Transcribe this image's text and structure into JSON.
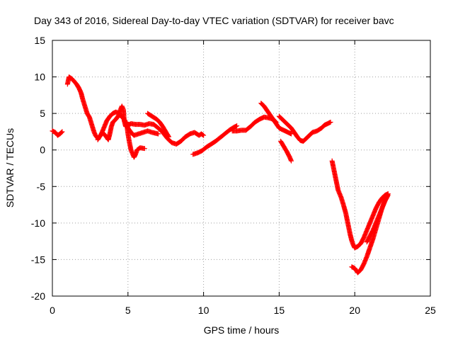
{
  "chart_data": {
    "type": "scatter",
    "title": "Day 343 of 2016, Sidereal Day-to-day VTEC variation (SDTVAR) for receiver bavc",
    "xlabel": "GPS time / hours",
    "ylabel": "SDTVAR / TECUs",
    "xlim": [
      0,
      25
    ],
    "ylim": [
      -20,
      15
    ],
    "xticks": [
      0,
      5,
      10,
      15,
      20,
      25
    ],
    "yticks": [
      -20,
      -15,
      -10,
      -5,
      0,
      5,
      10,
      15
    ],
    "grid": true,
    "marker": "+",
    "color": "#ff0000",
    "series": [
      {
        "segments": [
          [
            [
              0.0,
              2.6
            ],
            [
              0.2,
              2.4
            ],
            [
              0.35,
              2.0
            ],
            [
              0.5,
              2.2
            ],
            [
              0.65,
              2.5
            ]
          ],
          [
            [
              1.0,
              9.0
            ],
            [
              1.1,
              10.0
            ],
            [
              1.25,
              9.8
            ],
            [
              1.4,
              9.5
            ],
            [
              1.6,
              9.0
            ],
            [
              1.75,
              8.5
            ],
            [
              1.9,
              7.8
            ],
            [
              2.0,
              7.0
            ],
            [
              2.15,
              6.0
            ],
            [
              2.3,
              5.0
            ],
            [
              2.45,
              4.5
            ],
            [
              2.6,
              3.5
            ],
            [
              2.75,
              2.5
            ],
            [
              2.85,
              2.0
            ],
            [
              3.0,
              1.6
            ],
            [
              3.2,
              2.0
            ],
            [
              3.4,
              3.0
            ],
            [
              3.6,
              4.0
            ],
            [
              3.8,
              4.6
            ],
            [
              4.0,
              5.0
            ],
            [
              4.2,
              5.2
            ],
            [
              4.4,
              5.0
            ],
            [
              4.5,
              5.5
            ],
            [
              4.6,
              6.0
            ],
            [
              4.7,
              5.5
            ],
            [
              4.75,
              4.0
            ],
            [
              4.85,
              3.2
            ],
            [
              5.0,
              3.4
            ],
            [
              5.2,
              3.6
            ],
            [
              5.5,
              3.5
            ],
            [
              5.8,
              3.5
            ],
            [
              6.1,
              3.4
            ],
            [
              6.4,
              3.6
            ],
            [
              6.7,
              3.5
            ],
            [
              7.0,
              3.0
            ],
            [
              7.3,
              2.4
            ],
            [
              7.6,
              1.6
            ],
            [
              7.9,
              1.0
            ],
            [
              8.2,
              0.8
            ],
            [
              8.5,
              1.2
            ],
            [
              8.8,
              1.8
            ],
            [
              9.1,
              2.2
            ],
            [
              9.4,
              2.4
            ],
            [
              9.7,
              2.0
            ],
            [
              9.85,
              2.2
            ],
            [
              10.0,
              2.0
            ]
          ],
          [
            [
              3.0,
              1.4
            ],
            [
              3.3,
              2.4
            ],
            [
              3.5,
              2.0
            ],
            [
              3.7,
              1.4
            ],
            [
              3.8,
              2.2
            ],
            [
              3.9,
              3.2
            ],
            [
              4.0,
              3.8
            ],
            [
              4.2,
              4.2
            ],
            [
              4.4,
              4.8
            ],
            [
              4.6,
              4.6
            ],
            [
              4.8,
              4.0
            ],
            [
              5.0,
              3.0
            ],
            [
              5.2,
              2.4
            ],
            [
              5.4,
              2.0
            ],
            [
              5.7,
              2.2
            ],
            [
              6.0,
              2.4
            ],
            [
              6.3,
              2.6
            ],
            [
              6.6,
              2.4
            ],
            [
              7.0,
              2.2
            ]
          ],
          [
            [
              4.9,
              3.8
            ],
            [
              5.0,
              2.2
            ],
            [
              5.1,
              1.0
            ],
            [
              5.2,
              0.0
            ],
            [
              5.3,
              -0.5
            ],
            [
              5.4,
              -1.0
            ],
            [
              5.5,
              -0.6
            ],
            [
              5.6,
              0.0
            ],
            [
              5.8,
              0.3
            ],
            [
              6.1,
              0.2
            ]
          ],
          [
            [
              6.3,
              5.0
            ],
            [
              6.6,
              4.6
            ],
            [
              6.9,
              4.2
            ],
            [
              7.1,
              3.8
            ],
            [
              7.3,
              3.2
            ],
            [
              7.5,
              2.5
            ],
            [
              7.7,
              1.8
            ]
          ],
          [
            [
              9.3,
              -0.6
            ],
            [
              9.6,
              -0.4
            ],
            [
              9.9,
              -0.1
            ],
            [
              10.2,
              0.4
            ],
            [
              10.5,
              0.8
            ],
            [
              10.8,
              1.2
            ],
            [
              11.1,
              1.7
            ],
            [
              11.4,
              2.2
            ],
            [
              11.7,
              2.7
            ],
            [
              12.0,
              3.1
            ],
            [
              12.2,
              3.3
            ]
          ],
          [
            [
              11.9,
              2.6
            ],
            [
              12.2,
              2.6
            ],
            [
              12.5,
              2.7
            ],
            [
              12.8,
              2.7
            ],
            [
              13.1,
              3.2
            ],
            [
              13.4,
              3.8
            ],
            [
              13.7,
              4.2
            ],
            [
              14.0,
              4.5
            ],
            [
              14.3,
              4.4
            ],
            [
              14.6,
              4.2
            ],
            [
              14.8,
              3.8
            ]
          ],
          [
            [
              13.8,
              6.4
            ],
            [
              14.0,
              6.0
            ],
            [
              14.2,
              5.4
            ],
            [
              14.4,
              4.8
            ],
            [
              14.6,
              4.2
            ],
            [
              14.8,
              3.6
            ],
            [
              15.0,
              3.0
            ],
            [
              15.2,
              2.8
            ],
            [
              15.4,
              2.6
            ],
            [
              15.6,
              2.4
            ],
            [
              15.8,
              2.2
            ]
          ],
          [
            [
              15.0,
              4.6
            ],
            [
              15.2,
              4.2
            ],
            [
              15.4,
              3.8
            ],
            [
              15.6,
              3.4
            ],
            [
              15.8,
              3.0
            ],
            [
              16.0,
              2.4
            ],
            [
              16.2,
              1.8
            ],
            [
              16.4,
              1.3
            ],
            [
              16.6,
              1.2
            ],
            [
              16.8,
              1.6
            ],
            [
              17.0,
              2.0
            ],
            [
              17.2,
              2.4
            ],
            [
              17.5,
              2.6
            ],
            [
              17.8,
              3.0
            ],
            [
              18.0,
              3.4
            ],
            [
              18.2,
              3.6
            ],
            [
              18.4,
              3.8
            ]
          ],
          [
            [
              15.1,
              1.2
            ],
            [
              15.3,
              0.5
            ],
            [
              15.5,
              -0.2
            ],
            [
              15.7,
              -1.0
            ],
            [
              15.8,
              -1.5
            ]
          ],
          [
            [
              18.5,
              -1.5
            ],
            [
              18.6,
              -2.5
            ],
            [
              18.7,
              -3.5
            ],
            [
              18.8,
              -4.5
            ],
            [
              18.9,
              -5.5
            ],
            [
              19.1,
              -6.5
            ],
            [
              19.25,
              -7.5
            ],
            [
              19.4,
              -8.6
            ],
            [
              19.5,
              -9.6
            ],
            [
              19.6,
              -10.6
            ],
            [
              19.7,
              -11.6
            ],
            [
              19.8,
              -12.4
            ],
            [
              19.9,
              -13.0
            ],
            [
              20.0,
              -13.4
            ],
            [
              20.2,
              -13.2
            ],
            [
              20.4,
              -12.8
            ],
            [
              20.6,
              -12.0
            ],
            [
              20.8,
              -11.0
            ],
            [
              21.0,
              -10.0
            ],
            [
              21.2,
              -9.0
            ],
            [
              21.4,
              -8.0
            ],
            [
              21.6,
              -7.2
            ],
            [
              21.8,
              -6.6
            ],
            [
              22.0,
              -6.2
            ],
            [
              22.2,
              -6.0
            ]
          ],
          [
            [
              19.8,
              -16.0
            ],
            [
              20.0,
              -16.2
            ],
            [
              20.2,
              -16.8
            ],
            [
              20.4,
              -16.4
            ],
            [
              20.6,
              -15.6
            ],
            [
              20.8,
              -14.6
            ],
            [
              21.0,
              -13.4
            ],
            [
              21.2,
              -12.2
            ],
            [
              21.4,
              -10.8
            ],
            [
              21.6,
              -9.4
            ],
            [
              21.8,
              -8.0
            ],
            [
              22.0,
              -6.8
            ],
            [
              22.2,
              -6.0
            ]
          ],
          [
            [
              20.8,
              -12.6
            ],
            [
              21.0,
              -11.8
            ],
            [
              21.2,
              -11.0
            ],
            [
              21.4,
              -10.0
            ],
            [
              21.6,
              -9.0
            ],
            [
              21.8,
              -8.0
            ],
            [
              22.0,
              -7.0
            ],
            [
              22.2,
              -6.2
            ]
          ]
        ]
      }
    ]
  }
}
